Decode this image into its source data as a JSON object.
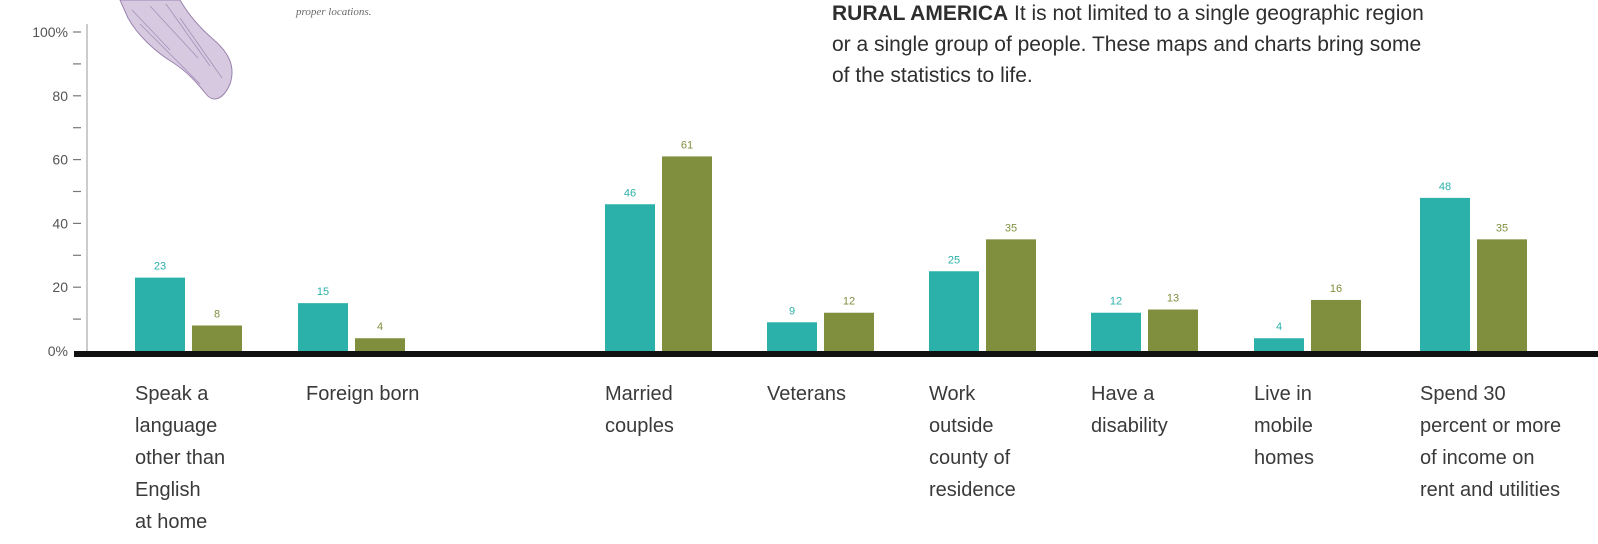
{
  "caption": "proper locations.",
  "intro": {
    "lead": "RURAL AMERICA",
    "text": "It is not limited to a single geographic region or a single group of people. These maps and charts bring some of the statistics to life."
  },
  "chart_data": {
    "type": "bar",
    "categories": [
      "Speak a\nlanguage\nother than\nEnglish\nat home",
      "Foreign born",
      "Married\ncouples",
      "Veterans",
      "Work\noutside\ncounty of\nresidence",
      "Have a\ndisability",
      "Live in\nmobile\nhomes",
      "Spend 30\npercent or more\nof income on\nrent and utilities"
    ],
    "series": [
      {
        "values": [
          23,
          15,
          46,
          9,
          25,
          12,
          4,
          48
        ],
        "color": "#2bb0aa"
      },
      {
        "values": [
          8,
          4,
          61,
          12,
          35,
          13,
          16,
          35
        ],
        "color": "#7f8f3e"
      }
    ],
    "ylim": [
      0,
      100
    ],
    "yticks": [
      "0%",
      "20",
      "40",
      "60",
      "80",
      "100%"
    ],
    "grid": false,
    "legend": "none"
  }
}
